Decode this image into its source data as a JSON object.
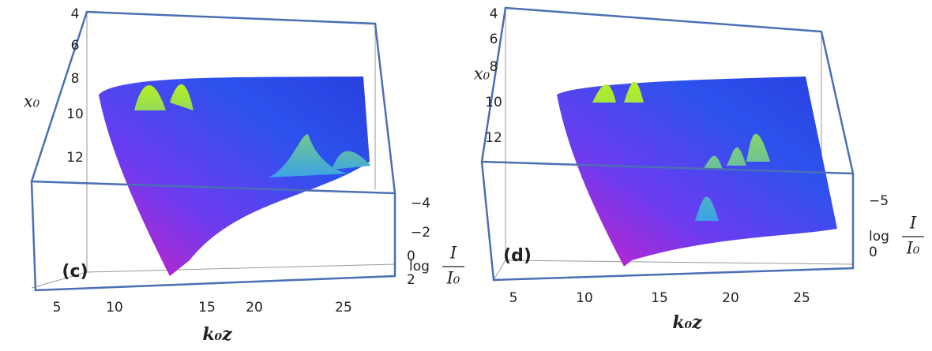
{
  "panels": [
    {
      "label": "(c)",
      "x0_label": "x₀",
      "x0_ticks": [
        "4",
        "6",
        "8",
        "10",
        "12"
      ],
      "kz_label": "k₀z",
      "kz_ticks": [
        "5",
        "10",
        "15",
        "20",
        "25"
      ],
      "log_label": "log",
      "log_num": "I",
      "log_den": "I₀",
      "log_ticks": [
        "−4",
        "−2",
        "0",
        "2"
      ]
    },
    {
      "label": "(d)",
      "x0_label": "x₀",
      "x0_ticks": [
        "4",
        "6",
        "8",
        "10",
        "12"
      ],
      "kz_label": "k₀z",
      "kz_ticks": [
        "5",
        "10",
        "15",
        "20",
        "25"
      ],
      "log_label": "log",
      "log_num": "I",
      "log_den": "I₀",
      "log_ticks": [
        "−5",
        "0"
      ]
    }
  ]
}
